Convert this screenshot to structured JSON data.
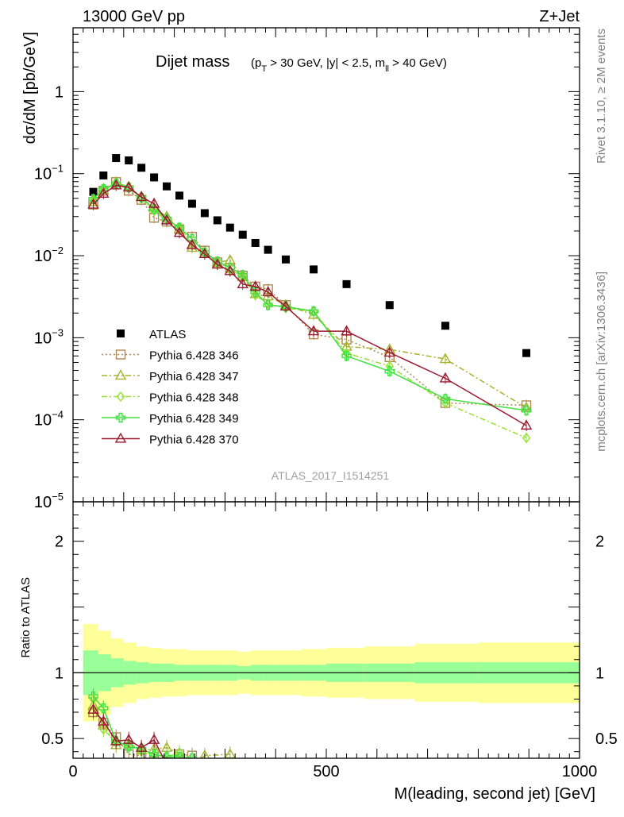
{
  "header": {
    "left": "13000 GeV pp",
    "right": "Z+Jet"
  },
  "side_labels": {
    "rivet": "Rivet 3.1.10, ≥ 2M events",
    "mcplots": "mcplots.cern.ch [arXiv:1306.3436]"
  },
  "watermark": "ATLAS_2017_I1514251",
  "chart_data": [
    {
      "type": "scatter",
      "title": "Dijet mass",
      "subtitle_parts": {
        "open": "(p",
        "pt_sub": "T",
        "mid": " > 30 GeV, |y| < 2.5, m",
        "ll_sub": "ll",
        "close": " > 40 GeV)"
      },
      "xlabel": "M(leading, second jet) [GeV]",
      "ylabel": "dσ/dM [pb/GeV]",
      "log_y": true,
      "xlim": [
        0,
        1000
      ],
      "ylim": [
        1e-05,
        6
      ],
      "x_ticks": [
        0,
        500,
        1000
      ],
      "y_ticks": [
        {
          "value": 1e-05,
          "base": "10",
          "exp": "−5"
        },
        {
          "value": 0.0001,
          "base": "10",
          "exp": "−4"
        },
        {
          "value": 0.001,
          "base": "10",
          "exp": "−3"
        },
        {
          "value": 0.01,
          "base": "10",
          "exp": "−2"
        },
        {
          "value": 0.1,
          "base": "10",
          "exp": "−1"
        },
        {
          "value": 1,
          "base": "1",
          "exp": ""
        }
      ],
      "legend_position": "middle-left",
      "series": [
        {
          "name": "ATLAS",
          "color": "#000000",
          "marker": "filled-square",
          "line": "none",
          "x": [
            40,
            60,
            85,
            110,
            135,
            160,
            185,
            210,
            235,
            260,
            285,
            310,
            335,
            360,
            385,
            420,
            475,
            540,
            625,
            735,
            895
          ],
          "y": [
            0.06,
            0.095,
            0.155,
            0.145,
            0.118,
            0.09,
            0.07,
            0.054,
            0.043,
            0.033,
            0.027,
            0.022,
            0.018,
            0.0143,
            0.0118,
            0.009,
            0.0068,
            0.0045,
            0.0025,
            0.0014,
            0.00065
          ]
        },
        {
          "name": "Pythia 6.428 346",
          "color": "#b08850",
          "marker": "open-square",
          "line": "dotted",
          "x": [
            40,
            60,
            85,
            110,
            135,
            160,
            185,
            210,
            235,
            260,
            285,
            310,
            335,
            360,
            385,
            420,
            475,
            540,
            625,
            735,
            895
          ],
          "y": [
            0.042,
            0.062,
            0.079,
            0.062,
            0.048,
            0.029,
            0.026,
            0.021,
            0.017,
            0.0115,
            0.0083,
            0.0071,
            0.0057,
            0.0042,
            0.0039,
            0.0025,
            0.0011,
            0.00095,
            0.00058,
            0.00016,
            0.00015
          ]
        },
        {
          "name": "Pythia 6.428 347",
          "color": "#a6b22e",
          "marker": "open-triangle",
          "line": "dash-dot",
          "x": [
            40,
            60,
            85,
            110,
            135,
            160,
            185,
            210,
            235,
            260,
            285,
            310,
            335,
            360,
            385,
            420,
            475,
            540,
            625,
            735,
            895
          ],
          "y": [
            0.045,
            0.063,
            0.078,
            0.069,
            0.052,
            0.038,
            0.03,
            0.021,
            0.0125,
            0.0105,
            0.0083,
            0.0088,
            0.0055,
            0.0034,
            0.0032,
            0.0025,
            0.0019,
            0.00078,
            0.00072,
            0.00055,
            0.00014
          ]
        },
        {
          "name": "Pythia 6.428 348",
          "color": "#98e034",
          "marker": "open-diamond",
          "line": "dash-dot",
          "x": [
            40,
            60,
            85,
            110,
            135,
            160,
            185,
            210,
            235,
            260,
            285,
            310,
            335,
            360,
            385,
            420,
            475,
            540,
            625,
            735,
            895
          ],
          "y": [
            0.048,
            0.066,
            0.076,
            0.069,
            0.05,
            0.035,
            0.027,
            0.022,
            0.0135,
            0.0105,
            0.0078,
            0.0065,
            0.0058,
            0.0033,
            0.0026,
            0.0023,
            0.0021,
            0.00065,
            0.00045,
            0.00016,
            6e-05
          ]
        },
        {
          "name": "Pythia 6.428 349",
          "color": "#40e040",
          "marker": "open-cross",
          "line": "solid",
          "x": [
            40,
            60,
            85,
            110,
            135,
            160,
            185,
            210,
            235,
            260,
            285,
            310,
            335,
            360,
            385,
            420,
            475,
            540,
            625,
            735,
            895
          ],
          "y": [
            0.049,
            0.065,
            0.075,
            0.068,
            0.051,
            0.037,
            0.028,
            0.022,
            0.016,
            0.011,
            0.0085,
            0.0072,
            0.0058,
            0.0036,
            0.0025,
            0.0024,
            0.0021,
            0.0006,
            0.00039,
            0.00018,
            0.00013
          ]
        },
        {
          "name": "Pythia 6.428 370",
          "color": "#9b1b30",
          "marker": "open-triangle",
          "line": "solid",
          "x": [
            40,
            60,
            85,
            110,
            135,
            160,
            185,
            210,
            235,
            260,
            285,
            310,
            335,
            360,
            385,
            420,
            475,
            540,
            625,
            735,
            895
          ],
          "y": [
            0.042,
            0.057,
            0.072,
            0.068,
            0.052,
            0.043,
            0.027,
            0.019,
            0.0135,
            0.0105,
            0.0078,
            0.0065,
            0.0045,
            0.0042,
            0.0036,
            0.0024,
            0.0012,
            0.0012,
            0.00066,
            0.00032,
            8.5e-05
          ]
        }
      ]
    },
    {
      "type": "line",
      "ylabel": "Ratio to ATLAS",
      "xlim": [
        0,
        1000
      ],
      "ylim": [
        0.35,
        2.3
      ],
      "y_ticks": [
        0.5,
        1,
        2
      ],
      "reference_line": 1,
      "bands": {
        "edges": [
          20,
          50,
          75,
          100,
          125,
          150,
          175,
          200,
          225,
          250,
          275,
          300,
          325,
          350,
          375,
          400,
          450,
          500,
          575,
          675,
          800,
          1000
        ],
        "inner_upper": [
          1.17,
          1.14,
          1.11,
          1.09,
          1.08,
          1.07,
          1.07,
          1.06,
          1.06,
          1.06,
          1.06,
          1.06,
          1.05,
          1.06,
          1.06,
          1.06,
          1.06,
          1.07,
          1.07,
          1.08,
          1.08
        ],
        "inner_lower": [
          0.83,
          0.86,
          0.89,
          0.91,
          0.92,
          0.93,
          0.93,
          0.94,
          0.94,
          0.94,
          0.94,
          0.94,
          0.95,
          0.94,
          0.94,
          0.94,
          0.94,
          0.93,
          0.93,
          0.92,
          0.92
        ],
        "outer_upper": [
          1.37,
          1.32,
          1.26,
          1.23,
          1.2,
          1.19,
          1.18,
          1.18,
          1.17,
          1.17,
          1.17,
          1.17,
          1.16,
          1.17,
          1.17,
          1.17,
          1.18,
          1.19,
          1.2,
          1.22,
          1.23
        ],
        "outer_lower": [
          0.63,
          0.68,
          0.74,
          0.77,
          0.8,
          0.81,
          0.82,
          0.82,
          0.83,
          0.83,
          0.83,
          0.83,
          0.84,
          0.83,
          0.83,
          0.83,
          0.82,
          0.81,
          0.8,
          0.78,
          0.77
        ]
      },
      "series": [
        {
          "name": "Pythia 6.428 346",
          "color": "#b08850",
          "marker": "open-square",
          "line": "dotted",
          "x": [
            40,
            60,
            85,
            110,
            135,
            160,
            185,
            210,
            235
          ],
          "y": [
            0.7,
            0.62,
            0.51,
            0.38,
            0.37,
            0.33,
            0.32,
            0.38,
            0.37
          ]
        },
        {
          "name": "Pythia 6.428 347",
          "color": "#a6b22e",
          "marker": "open-triangle",
          "line": "dash-dot",
          "x": [
            40,
            60,
            85,
            110,
            135,
            160,
            185,
            210,
            235,
            260,
            310
          ],
          "y": [
            0.75,
            0.6,
            0.45,
            0.46,
            0.41,
            0.42,
            0.43,
            0.39,
            0.29,
            0.37,
            0.38
          ]
        },
        {
          "name": "Pythia 6.428 348",
          "color": "#98e034",
          "marker": "open-diamond",
          "line": "dash-dot",
          "x": [
            40,
            60,
            85,
            110,
            135,
            160,
            185,
            210
          ],
          "y": [
            0.8,
            0.57,
            0.47,
            0.44,
            0.4,
            0.38,
            0.36,
            0.39
          ]
        },
        {
          "name": "Pythia 6.428 349",
          "color": "#40e040",
          "marker": "open-cross",
          "line": "solid",
          "x": [
            40,
            60,
            85,
            110,
            135,
            160,
            185,
            210,
            235
          ],
          "y": [
            0.82,
            0.73,
            0.48,
            0.44,
            0.42,
            0.38,
            0.36,
            0.36,
            0.35
          ]
        },
        {
          "name": "Pythia 6.428 370",
          "color": "#9b1b30",
          "marker": "open-triangle",
          "line": "solid",
          "x": [
            40,
            60,
            85,
            110,
            135,
            160,
            185
          ],
          "y": [
            0.72,
            0.63,
            0.48,
            0.49,
            0.43,
            0.49,
            0.3
          ]
        }
      ]
    }
  ]
}
